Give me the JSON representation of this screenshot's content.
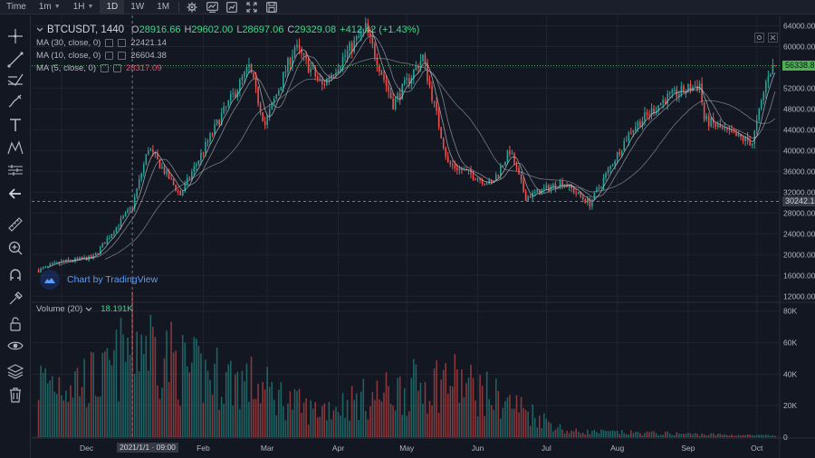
{
  "toolbar": {
    "time_label": "Time",
    "intervals": [
      "1m",
      "1H",
      "1D",
      "1W",
      "1M"
    ],
    "active_interval": "1D"
  },
  "legend": {
    "symbol": "BTCUSDT, 1440",
    "o_label": "O",
    "o": "28916.66",
    "h_label": "H",
    "h": "29602.00",
    "l_label": "L",
    "l": "28697.06",
    "c_label": "C",
    "c": "29329.08",
    "change": "+412.42 (+1.43%)",
    "ma": [
      {
        "label": "MA (30, close, 0)",
        "value": "22421.14",
        "color": "#b2b5be"
      },
      {
        "label": "MA (10, close, 0)",
        "value": "26604.38",
        "color": "#b2b5be"
      },
      {
        "label": "MA (5, close, 0)",
        "value": "28317.09",
        "color": "#e05479"
      }
    ]
  },
  "watermark": {
    "text": "Chart by TradingView"
  },
  "volume": {
    "label": "Volume (20)",
    "value": "18.191K"
  },
  "price_axis": {
    "ticks": [
      64000,
      60000,
      56000,
      52000,
      48000,
      44000,
      40000,
      36000,
      32000,
      28000,
      24000,
      20000,
      16000,
      12000
    ],
    "tick_labels": [
      "64000.00",
      "60000.00",
      "56000.00",
      "52000.00",
      "48000.00",
      "44000.00",
      "40000.00",
      "36000.00",
      "32000.00",
      "28000.00",
      "24000.00",
      "20000.00",
      "16000.00",
      "12000.00"
    ],
    "last_price": "56338.88",
    "crosshair_price": "30242.10"
  },
  "volume_axis": {
    "ticks": [
      80000,
      60000,
      40000,
      20000,
      0
    ],
    "tick_labels": [
      "80K",
      "60K",
      "40K",
      "20K",
      "0"
    ]
  },
  "time_axis": {
    "labels": [
      "Dec",
      "Feb",
      "Mar",
      "Apr",
      "May",
      "Jun",
      "Jul",
      "Aug",
      "Sep",
      "Oct"
    ],
    "crosshair_label": "2021/1/1 · 09:00"
  },
  "chart_data": {
    "type": "candlestick",
    "symbol": "BTCUSDT",
    "interval": "1440",
    "series_name": "BTCUSDT",
    "price_range": [
      11000,
      66000
    ],
    "volume_range": [
      0,
      85000
    ],
    "last_price": 56338.88,
    "crosshair_price": 30242.1,
    "anchors": [
      {
        "date": "2020-11-21",
        "price": 17000
      },
      {
        "date": "2020-12-01",
        "price": 18600
      },
      {
        "date": "2020-12-15",
        "price": 19500
      },
      {
        "date": "2020-12-27",
        "price": 26500
      },
      {
        "date": "2021-01-01",
        "price": 29300
      },
      {
        "date": "2021-01-08",
        "price": 40500
      },
      {
        "date": "2021-01-22",
        "price": 31500
      },
      {
        "date": "2021-02-08",
        "price": 46000
      },
      {
        "date": "2021-02-21",
        "price": 56000
      },
      {
        "date": "2021-02-28",
        "price": 45000
      },
      {
        "date": "2021-03-13",
        "price": 60000
      },
      {
        "date": "2021-03-25",
        "price": 52500
      },
      {
        "date": "2021-04-13",
        "price": 63500
      },
      {
        "date": "2021-04-25",
        "price": 49000
      },
      {
        "date": "2021-05-08",
        "price": 58000
      },
      {
        "date": "2021-05-19",
        "price": 37500
      },
      {
        "date": "2021-06-07",
        "price": 33500
      },
      {
        "date": "2021-06-15",
        "price": 40000
      },
      {
        "date": "2021-06-22",
        "price": 31000
      },
      {
        "date": "2021-07-08",
        "price": 34000
      },
      {
        "date": "2021-07-20",
        "price": 29800
      },
      {
        "date": "2021-08-07",
        "price": 44000
      },
      {
        "date": "2021-08-22",
        "price": 50000
      },
      {
        "date": "2021-09-06",
        "price": 52800
      },
      {
        "date": "2021-09-08",
        "price": 46000
      },
      {
        "date": "2021-09-20",
        "price": 43000
      },
      {
        "date": "2021-09-29",
        "price": 41500
      },
      {
        "date": "2021-10-06",
        "price": 55000
      },
      {
        "date": "2021-10-09",
        "price": 56338.88
      }
    ],
    "volume_profile": [
      {
        "date": "2020-11-21",
        "volume": 38000
      },
      {
        "date": "2020-12-20",
        "volume": 40000
      },
      {
        "date": "2021-01-04",
        "volume": 70000
      },
      {
        "date": "2021-01-25",
        "volume": 45000
      },
      {
        "date": "2021-02-20",
        "volume": 38000
      },
      {
        "date": "2021-03-20",
        "volume": 18000
      },
      {
        "date": "2021-04-18",
        "volume": 28000
      },
      {
        "date": "2021-05-19",
        "volume": 40000
      },
      {
        "date": "2021-06-20",
        "volume": 20000
      },
      {
        "date": "2021-07-10",
        "volume": 4000
      },
      {
        "date": "2021-10-09",
        "volume": 1000
      }
    ],
    "moving_averages": [
      {
        "label": "MA (30, close, 0)",
        "period": 30
      },
      {
        "label": "MA (10, close, 0)",
        "period": 10
      },
      {
        "label": "MA (5, close, 0)",
        "period": 5
      }
    ]
  },
  "colors": {
    "background": "#131722",
    "grid": "#1f2430",
    "up": "#26a69a",
    "down": "#ef5350",
    "up_volume": "#26a69a",
    "down_volume": "#ef5350",
    "last_price_bg": "#4caf50",
    "crosshair_bg": "#363a45",
    "ma_line": "#9aa0aa"
  },
  "left_tools": [
    "crosshair-icon",
    "trend-line-icon",
    "pitchfork-icon",
    "brush-icon",
    "text-icon",
    "pattern-icon",
    "prediction-icon",
    "back-arrow-icon",
    "ruler-icon",
    "zoom-in-icon",
    "magnet-icon",
    "lock-drawing-icon",
    "unlock-icon",
    "eye-icon",
    "layers-icon",
    "trash-icon"
  ]
}
